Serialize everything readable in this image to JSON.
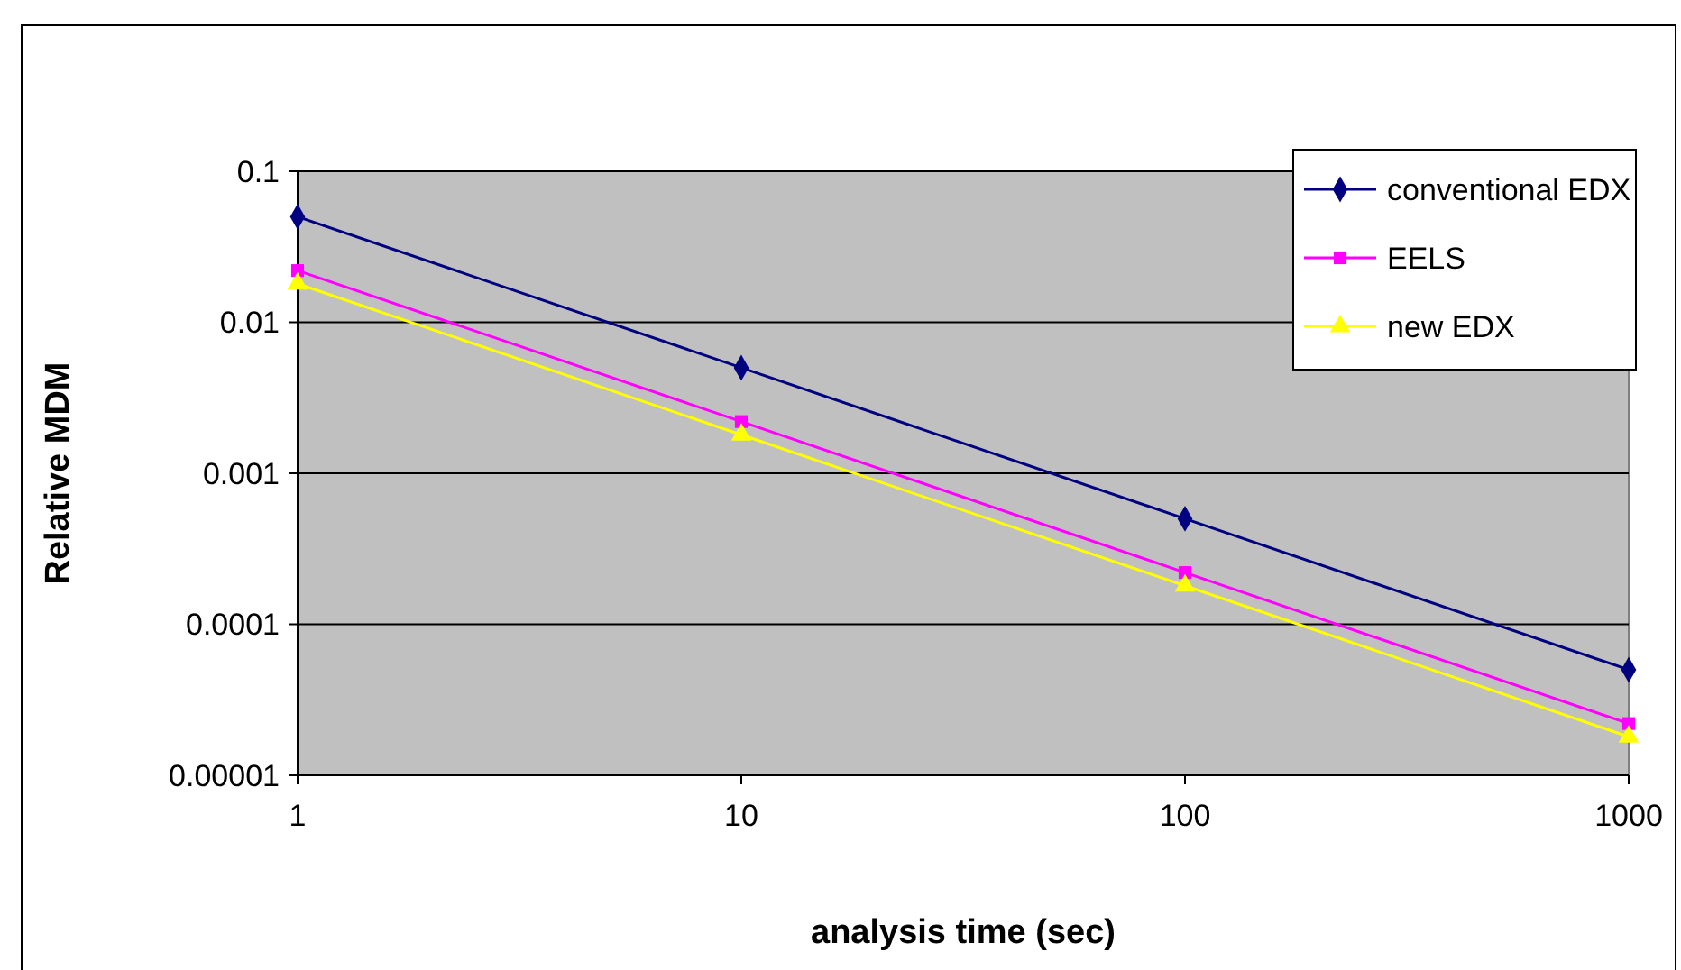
{
  "chart_data": {
    "type": "line",
    "xlabel": "analysis time (sec)",
    "ylabel": "Relative MDM",
    "log": "xy",
    "grid": "y",
    "legend": "top right",
    "x": [
      1,
      10,
      100,
      1000
    ],
    "xlim": [
      1,
      1000
    ],
    "xticks": [
      1,
      10,
      100,
      1000
    ],
    "ylim": [
      1e-05,
      0.1
    ],
    "yticks": [
      {
        "value": 1e-05,
        "label": "0.00001"
      },
      {
        "value": 0.0001,
        "label": "0.0001"
      },
      {
        "value": 0.001,
        "label": "0.001"
      },
      {
        "value": 0.01,
        "label": "0.01"
      },
      {
        "value": 0.1,
        "label": "0.1"
      }
    ],
    "series": [
      {
        "name": "conventional EDX",
        "color": "#000080",
        "marker": "diamond",
        "values": [
          0.05,
          0.005,
          0.0005,
          5e-05
        ]
      },
      {
        "name": "EELS",
        "color": "#ff00ff",
        "marker": "square",
        "values": [
          0.022,
          0.0022,
          0.00022,
          2.2e-05
        ]
      },
      {
        "name": "new EDX",
        "color": "#ffff00",
        "marker": "triangle",
        "values": [
          0.018,
          0.0018,
          0.00018,
          1.8e-05
        ]
      }
    ]
  }
}
